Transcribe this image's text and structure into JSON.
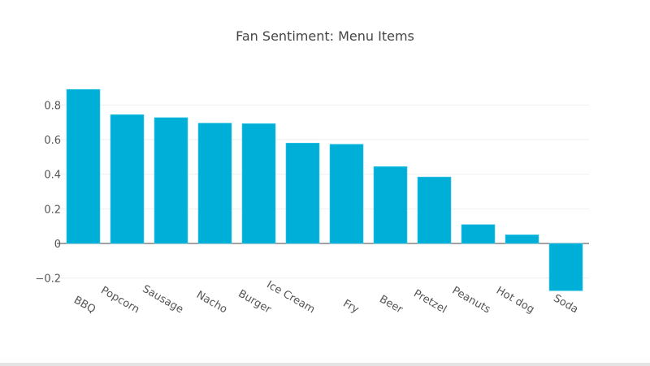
{
  "chart_data": {
    "type": "bar",
    "title": "Fan Sentiment: Menu Items",
    "xlabel": "",
    "ylabel": "",
    "categories": [
      "BBQ",
      "Popcorn",
      "Sausage",
      "Nacho",
      "Burger",
      "Ice Cream",
      "Fry",
      "Beer",
      "Pretzel",
      "Peanuts",
      "Hot dog",
      "Soda"
    ],
    "values": [
      0.89,
      0.744,
      0.727,
      0.695,
      0.692,
      0.58,
      0.573,
      0.444,
      0.384,
      0.109,
      0.05,
      -0.273
    ],
    "yticks": [
      -0.2,
      0,
      0.2,
      0.4,
      0.6,
      0.8
    ],
    "ytick_labels": [
      "−0.2",
      "0",
      "0.2",
      "0.4",
      "0.6",
      "0.8"
    ],
    "ylim": [
      -0.32,
      0.95
    ],
    "grid": true,
    "bar_color": "#00afd7"
  }
}
